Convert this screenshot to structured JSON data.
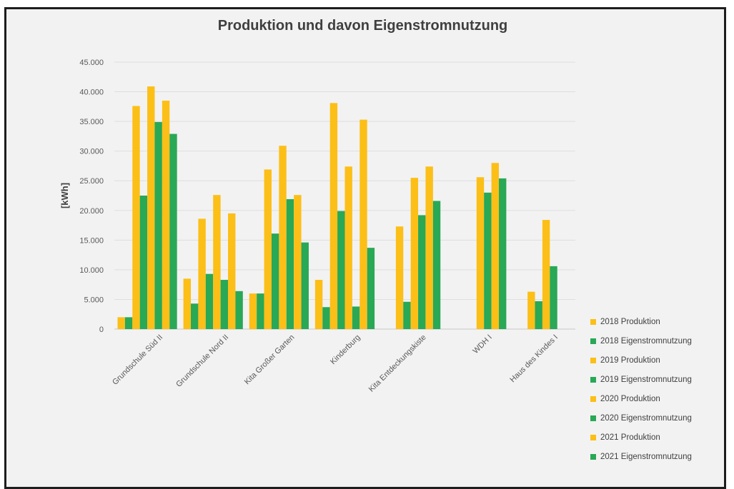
{
  "chart_data": {
    "type": "bar",
    "title": "Produktion und davon Eigenstromnutzung",
    "ylabel": "[kWh]",
    "xlabel": "",
    "ylim": [
      0,
      45000
    ],
    "yticks": [
      "0",
      "5.000",
      "10.000",
      "15.000",
      "20.000",
      "25.000",
      "30.000",
      "35.000",
      "40.000",
      "45.000"
    ],
    "grid": true,
    "legend_position": "right",
    "categories": [
      "Grundschule Süd II",
      "Grundschule Nord II",
      "Kita Großer Garten",
      "Kinderburg",
      "Kita Entdeckungskiste",
      "WDH I",
      "Haus des Kindes I"
    ],
    "series": [
      {
        "name": "2018 Produktion",
        "color": "#fcbf17",
        "values": [
          2000,
          8500,
          6000,
          8300,
          null,
          null,
          null
        ]
      },
      {
        "name": "2018 Eigenstromnutzung",
        "color": "#29a856",
        "values": [
          2000,
          4300,
          6000,
          3700,
          null,
          null,
          null
        ]
      },
      {
        "name": "2019 Produktion",
        "color": "#fcbf17",
        "values": [
          37600,
          18600,
          26900,
          38100,
          17300,
          null,
          6300
        ]
      },
      {
        "name": "2019 Eigenstromnutzung",
        "color": "#29a856",
        "values": [
          22500,
          9300,
          16100,
          19900,
          4600,
          null,
          4700
        ]
      },
      {
        "name": "2020 Produktion",
        "color": "#fcbf17",
        "values": [
          40900,
          22600,
          30900,
          27400,
          25500,
          25600,
          18400
        ]
      },
      {
        "name": "2020 Eigenstromnutzung",
        "color": "#29a856",
        "values": [
          34900,
          8300,
          21900,
          3800,
          19200,
          23000,
          10600
        ]
      },
      {
        "name": "2021 Produktion",
        "color": "#fcbf17",
        "values": [
          38500,
          19500,
          22600,
          35300,
          27400,
          28000,
          null
        ]
      },
      {
        "name": "2021 Eigenstromnutzung",
        "color": "#29a856",
        "values": [
          32900,
          6400,
          14600,
          13700,
          21600,
          25400,
          null
        ]
      }
    ]
  }
}
